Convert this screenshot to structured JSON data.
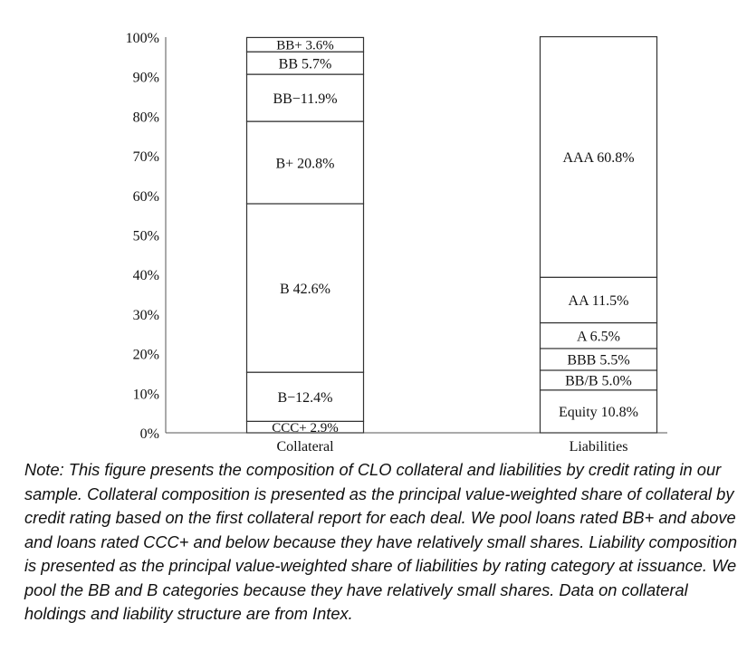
{
  "chart_data": {
    "type": "stacked-bar",
    "categories": [
      "Collateral",
      "Liabilities"
    ],
    "ylim": [
      0,
      100
    ],
    "yticks": [
      "0%",
      "10%",
      "20%",
      "30%",
      "40%",
      "50%",
      "60%",
      "70%",
      "80%",
      "90%",
      "100%"
    ],
    "grid": false,
    "segments": [
      [
        {
          "label": "CCC+ 2.9%",
          "value": 2.9
        },
        {
          "label": "B−12.4%",
          "value": 12.4
        },
        {
          "label": "B 42.6%",
          "value": 42.6
        },
        {
          "label": "B+ 20.8%",
          "value": 20.8
        },
        {
          "label": "BB−11.9%",
          "value": 11.9
        },
        {
          "label": "BB 5.7%",
          "value": 5.7
        },
        {
          "label": "BB+ 3.6%",
          "value": 3.6
        }
      ],
      [
        {
          "label": "Equity 10.8%",
          "value": 10.8
        },
        {
          "label": "BB/B 5.0%",
          "value": 5.0
        },
        {
          "label": "BBB 5.5%",
          "value": 5.5
        },
        {
          "label": "A 6.5%",
          "value": 6.5
        },
        {
          "label": "AA 11.5%",
          "value": 11.5
        },
        {
          "label": "AAA 60.8%",
          "value": 60.8
        }
      ]
    ]
  },
  "note": "Note: This figure presents the composition of CLO collateral and liabilities by credit rating in our sample. Collateral composition is presented as the principal value-weighted share of collateral by credit rating based on the first collateral report for each deal. We pool loans rated BB+ and above and loans rated CCC+ and below because they have relatively small shares. Liability composition is presented as the principal value-weighted share of liabilities by rating category at issuance. We pool the BB and B categories because they have relatively small shares. Data on collateral holdings and liability structure are from Intex."
}
